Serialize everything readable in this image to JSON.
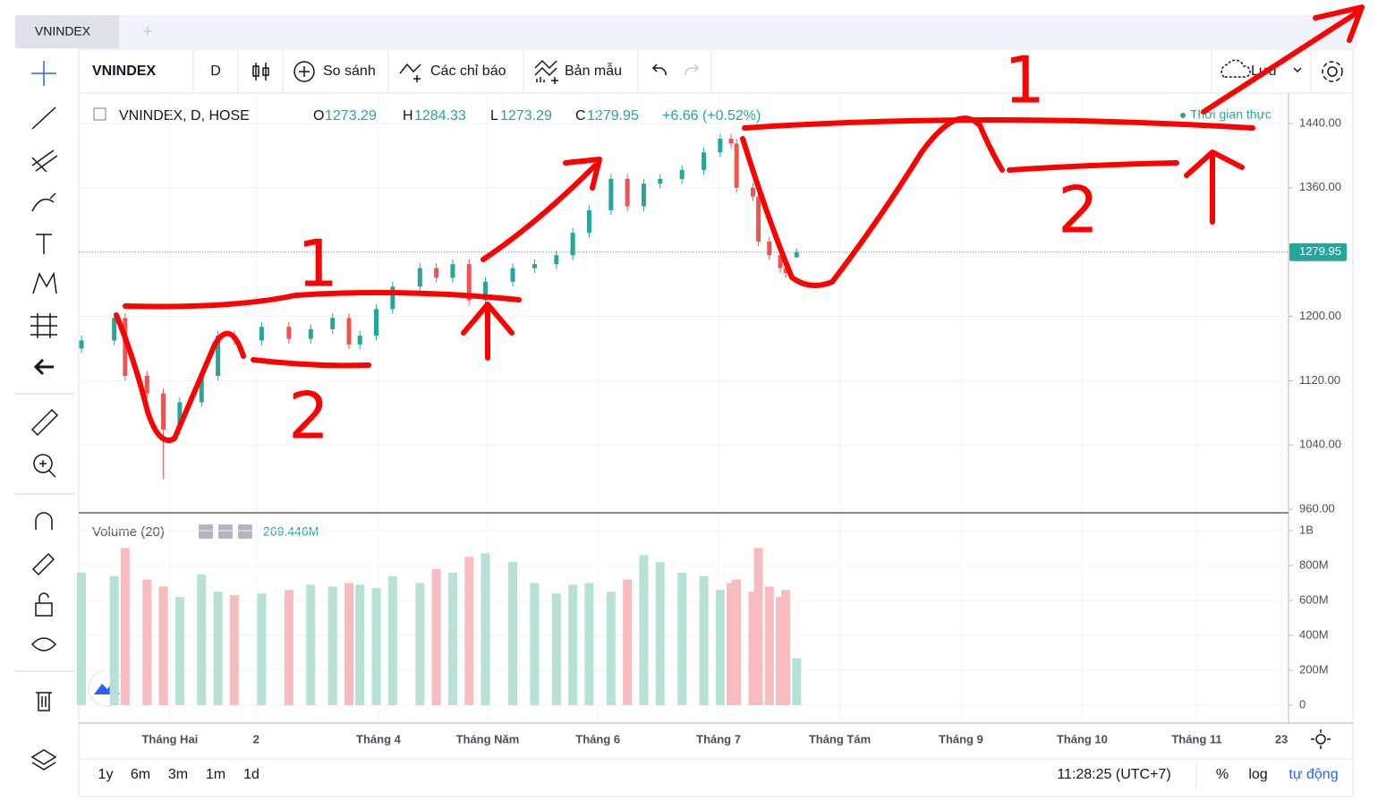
{
  "tabs": [
    "VNINDEX",
    "+"
  ],
  "toolbar": {
    "symbol": "VNINDEX",
    "interval": "D",
    "compare": "So sánh",
    "indicators": "Các chỉ báo",
    "templates": "Bản mẫu",
    "save": "Lưu"
  },
  "legend": {
    "title": "VNINDEX, D, HOSE",
    "ohlc_prefixes": [
      "O",
      "H",
      "L",
      "C"
    ],
    "change": "+6.66 (+0.52%)",
    "realtime": "Thời gian thực"
  },
  "volume_legend": {
    "title": "Volume (20)",
    "value": "269.446M"
  },
  "ranges": [
    "1y",
    "6m",
    "3m",
    "1m",
    "1d"
  ],
  "clock": "11:28:25 (UTC+7)",
  "scale_options": [
    "%",
    "log",
    "tự động"
  ],
  "annotations": [
    "1",
    "2",
    "1",
    "2"
  ],
  "chart_data": [
    {
      "type": "candlestick",
      "x": [
        0,
        6,
        8,
        12,
        15,
        18,
        22,
        25,
        28,
        33,
        38,
        42,
        46,
        49,
        51,
        54,
        57,
        62,
        65,
        68,
        71,
        74,
        79,
        83,
        87,
        90,
        93,
        97,
        100,
        103,
        106,
        110,
        114,
        117,
        119,
        120,
        123,
        124,
        126,
        128,
        129,
        131
      ],
      "open": [
        1160,
        1170,
        1198,
        1126,
        1104,
        1059,
        1093,
        1126,
        1176,
        1170,
        1187,
        1172,
        1184,
        1198,
        1165,
        1176,
        1209,
        1237,
        1260,
        1248,
        1265,
        1220,
        1243,
        1260,
        1265,
        1276,
        1304,
        1332,
        1371,
        1337,
        1365,
        1371,
        1382,
        1404,
        1421,
        1415,
        1360,
        1349,
        1293,
        1276,
        1260,
        1273.29
      ],
      "high": [
        1176,
        1204,
        1204,
        1132,
        1110,
        1099,
        1132,
        1182,
        1182,
        1193,
        1193,
        1190,
        1204,
        1204,
        1182,
        1215,
        1243,
        1266,
        1266,
        1271,
        1271,
        1249,
        1266,
        1271,
        1282,
        1310,
        1338,
        1377,
        1377,
        1371,
        1377,
        1388,
        1410,
        1427,
        1427,
        1421,
        1366,
        1355,
        1299,
        1282,
        1266,
        1284.33
      ],
      "low": [
        1154,
        1164,
        1120,
        1098,
        998,
        1053,
        1087,
        1120,
        1164,
        1164,
        1166,
        1166,
        1178,
        1159,
        1159,
        1170,
        1203,
        1231,
        1242,
        1242,
        1214,
        1214,
        1237,
        1254,
        1259,
        1270,
        1298,
        1326,
        1331,
        1331,
        1359,
        1365,
        1376,
        1398,
        1409,
        1354,
        1343,
        1287,
        1270,
        1254,
        1248,
        1273.29
      ],
      "close": [
        1170,
        1198,
        1126,
        1104,
        1059,
        1093,
        1126,
        1176,
        1170,
        1187,
        1172,
        1184,
        1198,
        1165,
        1176,
        1209,
        1237,
        1260,
        1248,
        1265,
        1220,
        1243,
        1260,
        1265,
        1276,
        1304,
        1332,
        1371,
        1337,
        1365,
        1371,
        1382,
        1404,
        1421,
        1415,
        1360,
        1349,
        1293,
        1276,
        1260,
        1254,
        1279.95
      ],
      "up_color": "#26a69a",
      "down_color": "#ef5350",
      "xlim": [
        -0.5,
        221.1
      ],
      "xticks": [
        {
          "value": 16.2,
          "label": "Tháng Hai"
        },
        {
          "value": 32,
          "label": "2"
        },
        {
          "value": 54.4,
          "label": "Tháng 4"
        },
        {
          "value": 74.4,
          "label": "Tháng Năm"
        },
        {
          "value": 94.6,
          "label": "Tháng 6"
        },
        {
          "value": 116.7,
          "label": "Tháng 7"
        },
        {
          "value": 138.9,
          "label": "Tháng Tám"
        },
        {
          "value": 161.1,
          "label": "Tháng 9"
        },
        {
          "value": 183.3,
          "label": "Tháng 10"
        },
        {
          "value": 204.3,
          "label": "Tháng 11"
        },
        {
          "value": 219.8,
          "label": "23"
        }
      ],
      "ylim": [
        956.7,
        1476.7
      ],
      "yticks": [
        {
          "value": 960,
          "label": "960.00"
        },
        {
          "value": 1040,
          "label": "1040.00"
        },
        {
          "value": 1120,
          "label": "1120.00"
        },
        {
          "value": 1200,
          "label": "1200.00"
        },
        {
          "value": 1360,
          "label": "1360.00"
        },
        {
          "value": 1440,
          "label": "1440.00"
        }
      ],
      "grid": true
    },
    {
      "type": "bar",
      "x": [
        0,
        6,
        8,
        12,
        15,
        18,
        22,
        25,
        28,
        33,
        38,
        42,
        46,
        49,
        51,
        54,
        57,
        62,
        65,
        68,
        71,
        74,
        79,
        83,
        87,
        90,
        93,
        97,
        100,
        103,
        106,
        110,
        114,
        117,
        119,
        120,
        123,
        124,
        126,
        128,
        129,
        131
      ],
      "values": [
        760,
        740,
        900,
        720,
        680,
        620,
        750,
        650,
        630,
        640,
        660,
        690,
        680,
        700,
        690,
        670,
        740,
        700,
        780,
        760,
        850,
        870,
        820,
        700,
        640,
        690,
        700,
        650,
        720,
        860,
        820,
        760,
        740,
        660,
        700,
        720,
        650,
        900,
        680,
        620,
        660,
        269.446
      ],
      "up_color": "#b7e1d4",
      "down_color": "#f6bcc0",
      "ylim": [
        -102.6,
        1092
      ],
      "yticks": [
        0,
        {
          "value": 200,
          "label": "200M"
        },
        {
          "value": 400,
          "label": "400M"
        },
        {
          "value": 600,
          "label": "600M"
        },
        {
          "value": 800,
          "label": "800M"
        },
        {
          "value": 1000,
          "label": "1B"
        }
      ],
      "grid": true
    }
  ]
}
